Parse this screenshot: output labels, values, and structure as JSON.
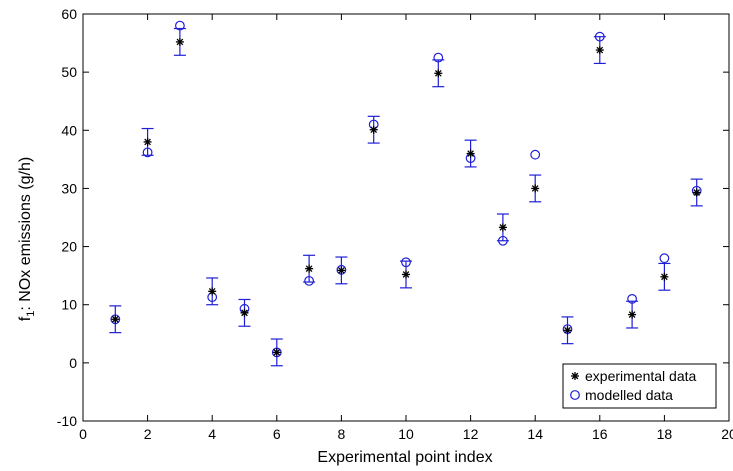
{
  "chart_data": {
    "type": "scatter",
    "xlabel": "Experimental point index",
    "ylabel_main": "f",
    "ylabel_sub": "1",
    "ylabel_rest": ": NOx emissions (g/h)",
    "xlim": [
      0,
      20
    ],
    "ylim": [
      -10,
      60
    ],
    "xticks": [
      0,
      2,
      4,
      6,
      8,
      10,
      12,
      14,
      16,
      18,
      20
    ],
    "yticks": [
      -10,
      0,
      10,
      20,
      30,
      40,
      50,
      60
    ],
    "grid": false,
    "legend_position": "bottom-right",
    "x": [
      1,
      2,
      3,
      4,
      5,
      6,
      7,
      8,
      9,
      10,
      11,
      12,
      13,
      14,
      15,
      16,
      17,
      18,
      19
    ],
    "series": [
      {
        "name": "experimental data",
        "marker": "asterisk",
        "color": "#000000",
        "values": [
          7.5,
          38.0,
          55.2,
          12.3,
          8.6,
          1.8,
          16.2,
          15.9,
          40.1,
          15.2,
          49.8,
          36.0,
          23.3,
          30.0,
          5.6,
          53.8,
          8.3,
          14.8,
          29.3
        ],
        "error": 2.3,
        "error_color": "#1f1fd8"
      },
      {
        "name": "modelled data",
        "marker": "circle",
        "color": "#1f1fd8",
        "values": [
          7.5,
          36.2,
          58.0,
          11.3,
          9.3,
          1.8,
          14.1,
          16.0,
          41.0,
          17.3,
          52.5,
          35.2,
          21.0,
          35.8,
          5.8,
          56.1,
          11.0,
          18.0,
          29.6
        ]
      }
    ]
  }
}
